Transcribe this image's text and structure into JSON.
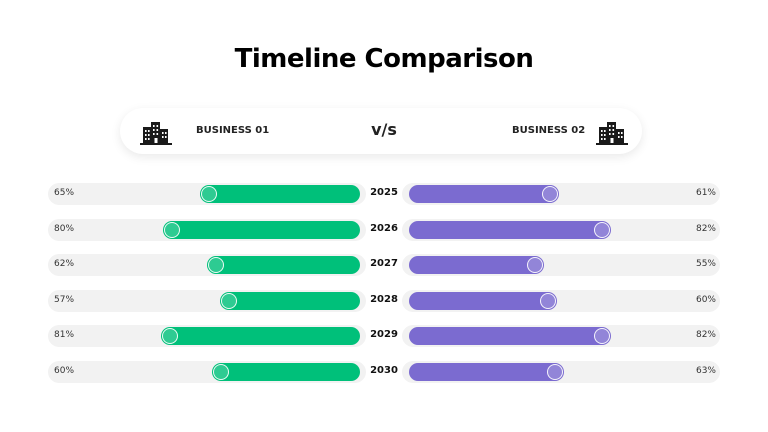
{
  "title": "Timeline Comparison",
  "header": {
    "left_label": "BUSINESS 01",
    "right_label": "BUSINESS 02",
    "vs_label": "v/s",
    "left_icon": "buildings-icon",
    "right_icon": "buildings-icon"
  },
  "colors": {
    "business_01": "#00c07a",
    "business_02": "#7b6bd0",
    "track": "#f2f2f2"
  },
  "chart_data": {
    "type": "bar",
    "categories": [
      "2025",
      "2026",
      "2027",
      "2028",
      "2029",
      "2030"
    ],
    "series": [
      {
        "name": "BUSINESS 01",
        "values": [
          65,
          80,
          62,
          57,
          81,
          60
        ],
        "labels": [
          "65%",
          "80%",
          "62%",
          "57%",
          "81%",
          "60%"
        ]
      },
      {
        "name": "BUSINESS 02",
        "values": [
          61,
          82,
          55,
          60,
          82,
          63
        ],
        "labels": [
          "61%",
          "82%",
          "55%",
          "60%",
          "82%",
          "63%"
        ]
      }
    ],
    "title": "Timeline Comparison",
    "xlabel": "",
    "ylabel": "",
    "ylim": [
      0,
      100
    ]
  }
}
